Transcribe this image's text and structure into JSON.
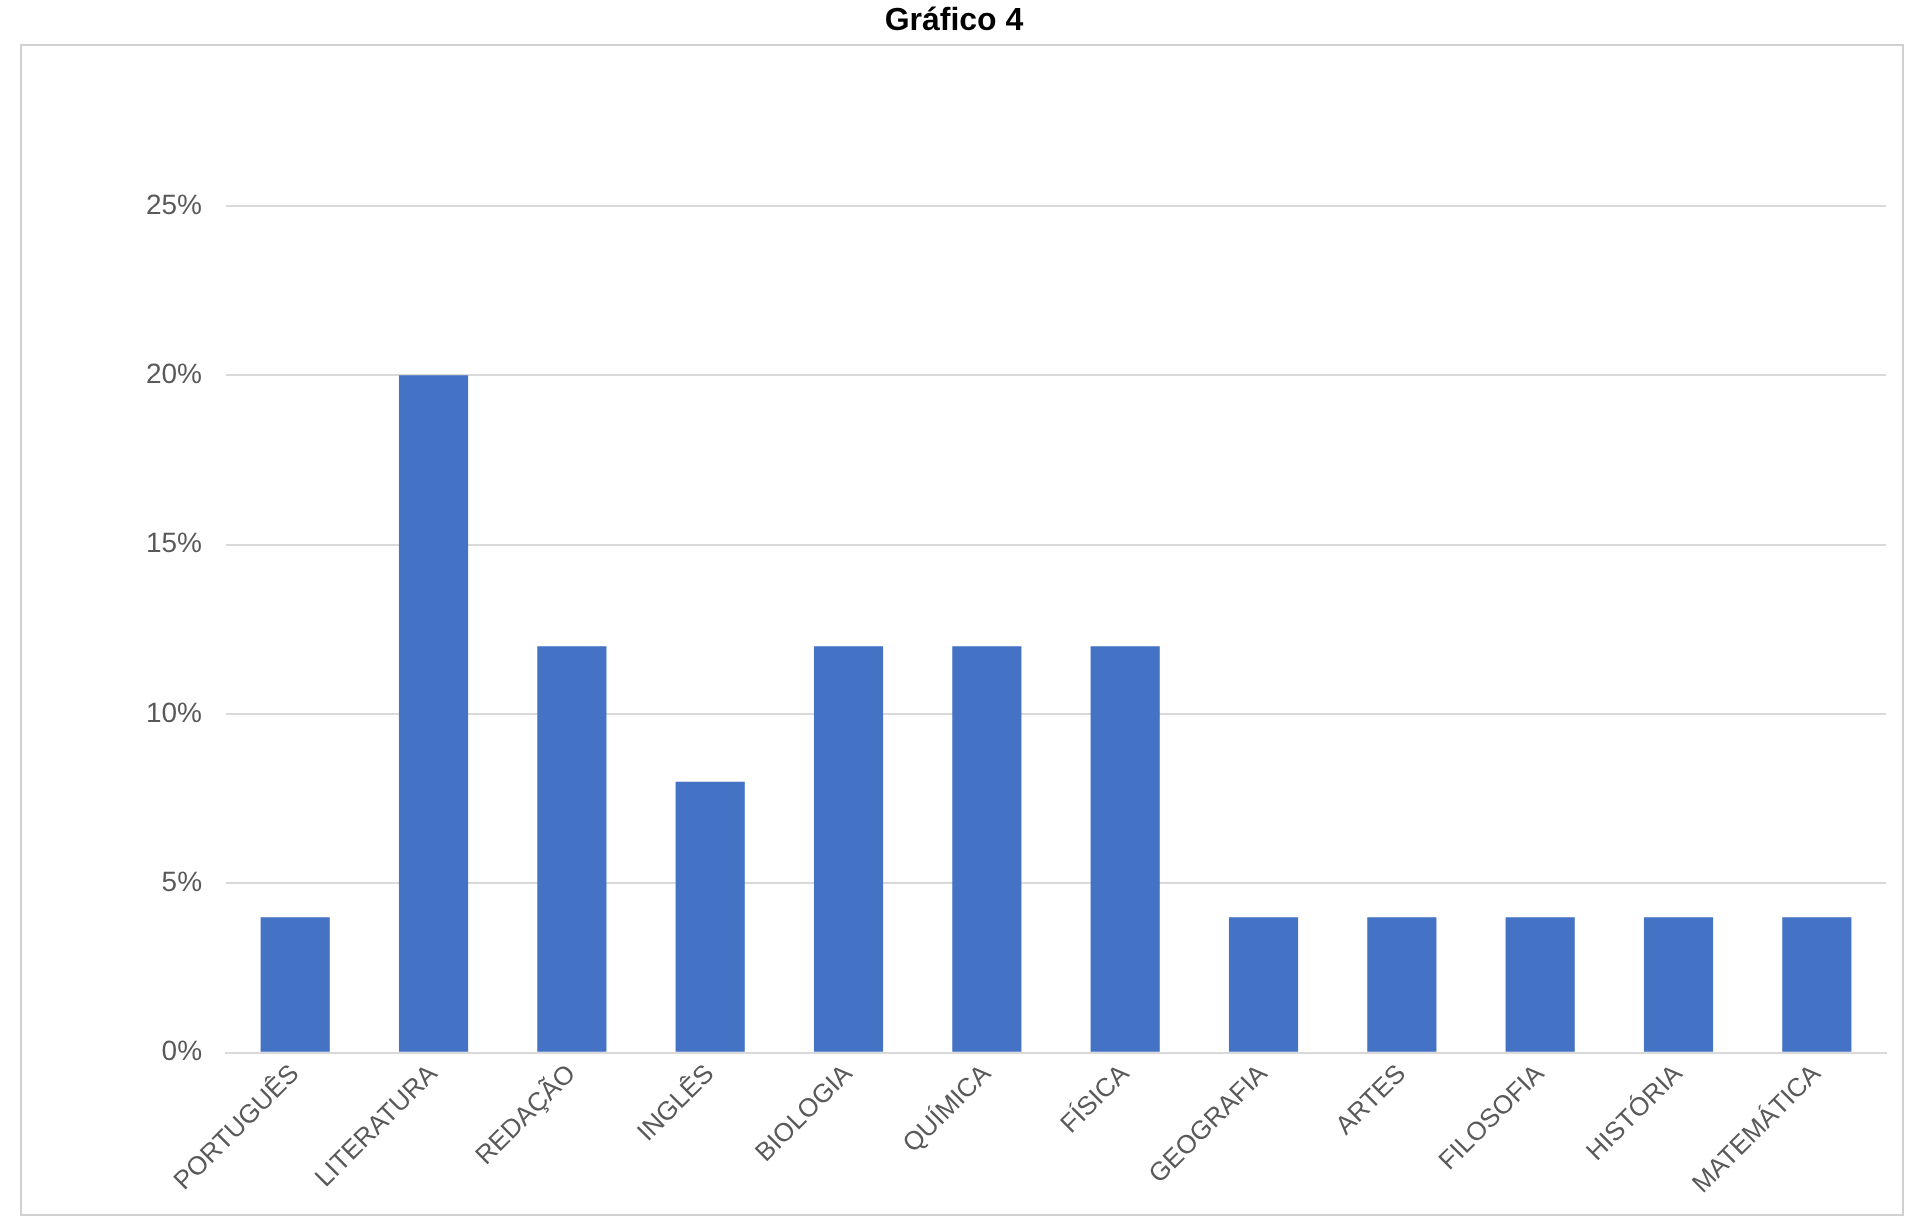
{
  "chart_data": {
    "type": "bar",
    "title": "Gráfico 4",
    "categories": [
      "PORTUGUÊS",
      "LITERATURA",
      "REDAÇÃO",
      "INGLÊS",
      "BIOLOGIA",
      "QUÍMICA",
      "FÍSICA",
      "GEOGRAFIA",
      "ARTES",
      "FILOSOFIA",
      "HISTÓRIA",
      "MATEMÁTICA"
    ],
    "values": [
      4,
      20,
      12,
      8,
      12,
      12,
      12,
      4,
      4,
      4,
      4,
      4
    ],
    "color": "#4472c4",
    "ylim": [
      0,
      25
    ],
    "yticks": [
      {
        "value": 0,
        "label": "0%"
      },
      {
        "value": 5,
        "label": "5%"
      },
      {
        "value": 10,
        "label": "10%"
      },
      {
        "value": 15,
        "label": "15%"
      },
      {
        "value": 20,
        "label": "20%"
      },
      {
        "value": 25,
        "label": "25%"
      }
    ],
    "grid": "y",
    "legend": false
  }
}
